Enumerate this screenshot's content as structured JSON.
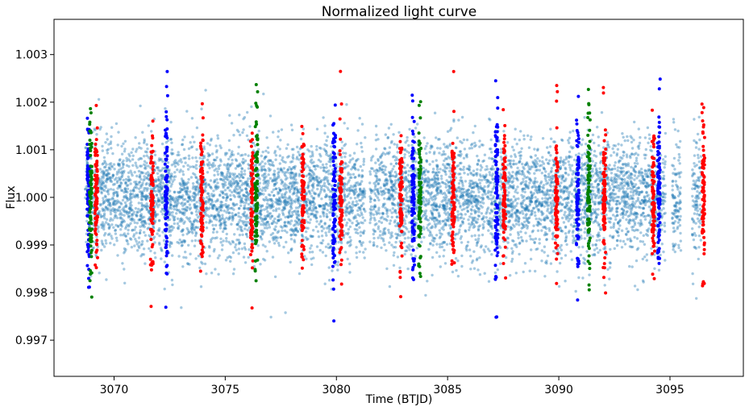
{
  "chart_data": {
    "type": "scatter",
    "title": "Normalized light curve",
    "xlabel": "Time (BTJD)",
    "ylabel": "Flux",
    "xlim": [
      3067.3,
      3098.3
    ],
    "ylim": [
      0.99624,
      1.00374
    ],
    "xticks": [
      3070,
      3075,
      3080,
      3085,
      3090,
      3095
    ],
    "yticks": [
      0.997,
      0.998,
      0.999,
      1.0,
      1.001,
      1.002,
      1.003
    ],
    "xtick_labels": [
      "3070",
      "3075",
      "3080",
      "3085",
      "3090",
      "3095"
    ],
    "ytick_labels": [
      "0.997",
      "0.998",
      "0.999",
      "1.000",
      "1.001",
      "1.002",
      "1.003"
    ],
    "grid": false,
    "legend": "none",
    "baseline": {
      "color": "#1f77b4",
      "segments": [
        [
          3068.7,
          3081.3
        ],
        [
          3081.5,
          3094.8
        ],
        [
          3095.1,
          3095.5
        ],
        [
          3096.0,
          3096.4
        ]
      ],
      "flux_center": 1.0,
      "flux_sigma": 0.0006,
      "approx_points": 7000
    },
    "highlight_series": [
      {
        "color": "#0000ff",
        "times": [
          3068.85,
          3072.35,
          3079.9,
          3083.45,
          3087.2,
          3090.85,
          3094.5
        ],
        "flux_sigma": 0.0009
      },
      {
        "color": "#ff0000",
        "times": [
          3069.2,
          3071.7,
          3073.95,
          3076.2,
          3078.5,
          3080.2,
          3082.9,
          3085.25,
          3087.55,
          3089.9,
          3092.05,
          3094.25,
          3096.5
        ],
        "flux_sigma": 0.0007
      },
      {
        "color": "#008000",
        "times": [
          3068.95,
          3076.4,
          3083.75,
          3091.35
        ],
        "flux_sigma": 0.0008
      }
    ]
  }
}
